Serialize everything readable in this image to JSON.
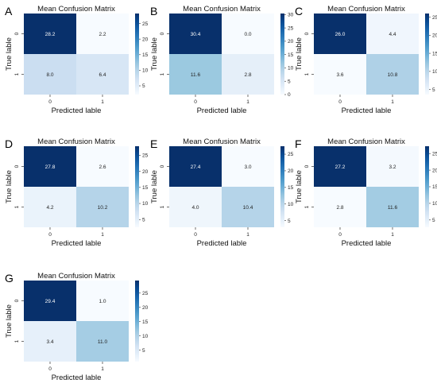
{
  "colormap": {
    "name": "Blues",
    "stops": [
      "#f7fbff",
      "#deebf7",
      "#c6dbef",
      "#9ecae1",
      "#6baed6",
      "#4292c6",
      "#2171b5",
      "#08519c",
      "#08306b"
    ]
  },
  "chart_data": [
    {
      "type": "heatmap",
      "panel": "A",
      "title": "Mean Confusion Matrix",
      "xlabel": "Predicted lable",
      "ylabel": "True lable",
      "x_ticks": [
        "0",
        "1"
      ],
      "y_ticks": [
        "0",
        "1"
      ],
      "values": [
        [
          28.2,
          2.2
        ],
        [
          8.0,
          6.4
        ]
      ],
      "colorbar_range": [
        2.2,
        28.2
      ],
      "colorbar_ticks": [
        5,
        10,
        15,
        20,
        25
      ]
    },
    {
      "type": "heatmap",
      "panel": "B",
      "title": "Mean Confusion Matrix",
      "xlabel": "Predicted lable",
      "ylabel": "True lable",
      "x_ticks": [
        "0",
        "1"
      ],
      "y_ticks": [
        "0",
        "1"
      ],
      "values": [
        [
          30.4,
          0.0
        ],
        [
          11.6,
          2.8
        ]
      ],
      "colorbar_range": [
        0.0,
        30.4
      ],
      "colorbar_ticks": [
        0,
        5,
        10,
        15,
        20,
        25,
        30
      ]
    },
    {
      "type": "heatmap",
      "panel": "C",
      "title": "Mean Confusion Matrix",
      "xlabel": "Predicted lable",
      "ylabel": "True lable",
      "x_ticks": [
        "0",
        "1"
      ],
      "y_ticks": [
        "0",
        "1"
      ],
      "values": [
        [
          26.0,
          4.4
        ],
        [
          3.6,
          10.8
        ]
      ],
      "colorbar_range": [
        3.6,
        26.0
      ],
      "colorbar_ticks": [
        5,
        10,
        15,
        20,
        25
      ]
    },
    {
      "type": "heatmap",
      "panel": "D",
      "title": "Mean Confusion Matrix",
      "xlabel": "Predicted lable",
      "ylabel": "True lable",
      "x_ticks": [
        "0",
        "1"
      ],
      "y_ticks": [
        "0",
        "1"
      ],
      "values": [
        [
          27.8,
          2.6
        ],
        [
          4.2,
          10.2
        ]
      ],
      "colorbar_range": [
        2.6,
        27.8
      ],
      "colorbar_ticks": [
        5,
        10,
        15,
        20,
        25
      ]
    },
    {
      "type": "heatmap",
      "panel": "E",
      "title": "Mean Confusion Matrix",
      "xlabel": "Predicted lable",
      "ylabel": "True lable",
      "x_ticks": [
        "0",
        "1"
      ],
      "y_ticks": [
        "0",
        "1"
      ],
      "values": [
        [
          27.4,
          3.0
        ],
        [
          4.0,
          10.4
        ]
      ],
      "colorbar_range": [
        3.0,
        27.4
      ],
      "colorbar_ticks": [
        5,
        10,
        15,
        20,
        25
      ]
    },
    {
      "type": "heatmap",
      "panel": "F",
      "title": "Mean Confusion Matrix",
      "xlabel": "Predicted lable",
      "ylabel": "True lable",
      "x_ticks": [
        "0",
        "1"
      ],
      "y_ticks": [
        "0",
        "1"
      ],
      "values": [
        [
          27.2,
          3.2
        ],
        [
          2.8,
          11.6
        ]
      ],
      "colorbar_range": [
        2.8,
        27.2
      ],
      "colorbar_ticks": [
        5,
        10,
        15,
        20,
        25
      ]
    },
    {
      "type": "heatmap",
      "panel": "G",
      "title": "Mean Confusion Matrix",
      "xlabel": "Predicted lable",
      "ylabel": "True lable",
      "x_ticks": [
        "0",
        "1"
      ],
      "y_ticks": [
        "0",
        "1"
      ],
      "values": [
        [
          29.4,
          1.0
        ],
        [
          3.4,
          11.0
        ]
      ],
      "colorbar_range": [
        1.0,
        29.4
      ],
      "colorbar_ticks": [
        5,
        10,
        15,
        20,
        25
      ]
    }
  ]
}
